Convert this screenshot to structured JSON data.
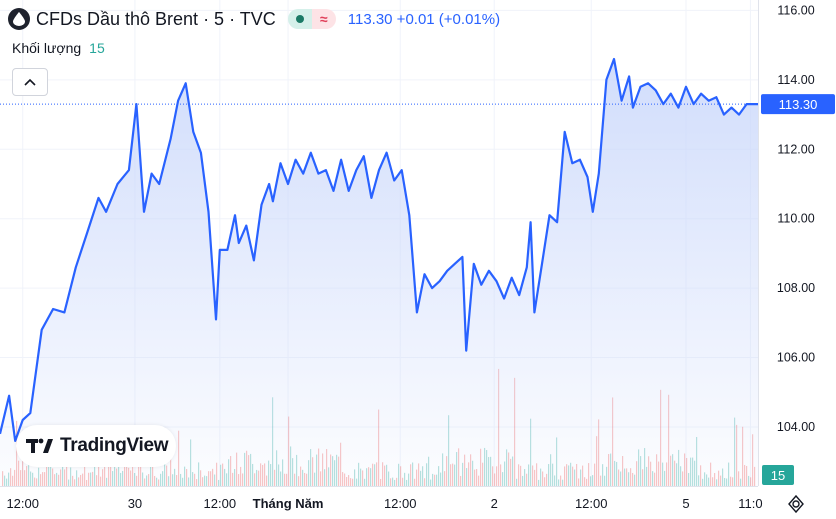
{
  "header": {
    "title": "CFDs Dầu thô Brent · 5 · TVC",
    "price_text": "113.30 +0.01 (+0.01%)",
    "status_dot_color": "#1b7a66",
    "wave_symbol": "≈"
  },
  "volume": {
    "label": "Khối lượng",
    "value": "15"
  },
  "watermark": {
    "text": "TradingView"
  },
  "colors": {
    "line": "#2962ff",
    "fill_top": "#c9d7fb",
    "vol_up": "#26a69a",
    "vol_down": "#ef5350",
    "price_tag": "#2962ff",
    "vol_tag": "#26a69a"
  },
  "chart_data": {
    "type": "area",
    "title": "CFDs Dầu thô Brent",
    "y_ticks": [
      "116.00",
      "114.00",
      "112.00",
      "110.00",
      "108.00",
      "106.00",
      "104.00"
    ],
    "ylim": [
      102.3,
      116.3
    ],
    "x_ticks": [
      "12:00",
      "30",
      "12:00",
      "Tháng Năm",
      "12:00",
      "2",
      "12:00",
      "5",
      "11:0"
    ],
    "x_tick_positions": [
      0.03,
      0.178,
      0.29,
      0.38,
      0.528,
      0.652,
      0.78,
      0.905,
      0.99
    ],
    "last_price_label": "113.30",
    "last_price": 113.3,
    "volume_label": "15",
    "series": [
      {
        "values_x": [
          0.0,
          0.012,
          0.02,
          0.03,
          0.04,
          0.055,
          0.07,
          0.085,
          0.1,
          0.115,
          0.13,
          0.14,
          0.155,
          0.17,
          0.18,
          0.19,
          0.2,
          0.21,
          0.225,
          0.235,
          0.245,
          0.255,
          0.265,
          0.275,
          0.285,
          0.29,
          0.3,
          0.31,
          0.315,
          0.325,
          0.335,
          0.345,
          0.355,
          0.36,
          0.37,
          0.38,
          0.39,
          0.4,
          0.41,
          0.42,
          0.43,
          0.44,
          0.45,
          0.46,
          0.47,
          0.48,
          0.49,
          0.5,
          0.51,
          0.52,
          0.53,
          0.54,
          0.55,
          0.56,
          0.57,
          0.58,
          0.59,
          0.6,
          0.61,
          0.615,
          0.625,
          0.635,
          0.645,
          0.655,
          0.665,
          0.675,
          0.685,
          0.695,
          0.7,
          0.705,
          0.715,
          0.725,
          0.735,
          0.745,
          0.755,
          0.765,
          0.775,
          0.782,
          0.79,
          0.8,
          0.81,
          0.82,
          0.83,
          0.835,
          0.845,
          0.855,
          0.865,
          0.87,
          0.875,
          0.885,
          0.895,
          0.9,
          0.905,
          0.915,
          0.925,
          0.935,
          0.945,
          0.955,
          0.965,
          0.975,
          0.985,
          0.995,
          1.0
        ],
        "values": [
          103.8,
          104.9,
          103.6,
          104.2,
          104.4,
          106.8,
          107.4,
          107.3,
          108.6,
          109.6,
          110.6,
          110.2,
          111.0,
          111.4,
          113.3,
          110.2,
          111.3,
          111.0,
          112.3,
          113.4,
          113.9,
          112.5,
          111.9,
          110.2,
          107.1,
          109.1,
          109.1,
          110.1,
          109.3,
          109.8,
          108.8,
          110.4,
          111.0,
          110.5,
          111.6,
          111.0,
          111.7,
          111.3,
          111.9,
          111.3,
          111.4,
          110.8,
          111.7,
          110.8,
          111.4,
          111.8,
          110.6,
          111.4,
          111.9,
          111.1,
          111.4,
          110.1,
          107.3,
          108.4,
          108.0,
          108.2,
          108.5,
          108.7,
          108.9,
          106.2,
          108.7,
          108.1,
          108.5,
          108.2,
          107.7,
          108.3,
          107.8,
          108.6,
          109.9,
          107.3,
          108.7,
          110.1,
          109.9,
          112.5,
          111.6,
          111.7,
          111.2,
          110.2,
          111.3,
          114.0,
          114.6,
          113.4,
          114.1,
          113.2,
          113.8,
          113.9,
          113.7,
          113.5,
          113.3,
          113.6,
          113.2,
          113.5,
          113.8,
          113.3,
          113.6,
          113.4,
          113.5,
          113.0,
          113.2,
          113.0,
          113.3,
          113.3,
          113.3
        ]
      }
    ]
  }
}
